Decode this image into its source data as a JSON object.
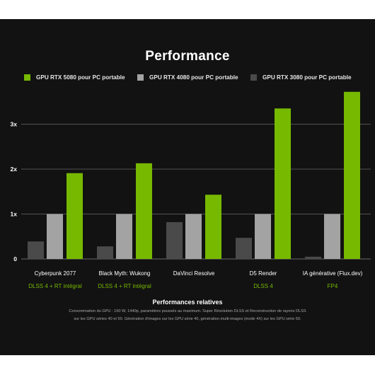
{
  "colors": {
    "background": "#121212",
    "rtx5080": "#76b900",
    "rtx4080": "#a3a3a3",
    "rtx3080": "#4a4a4a",
    "subtitle_green": "#76b900",
    "gridline": "#6a6a6a"
  },
  "chart_data": {
    "type": "bar",
    "title": "Performance",
    "xlabel": "Performances relatives",
    "ylabel": "",
    "ylim": [
      0,
      3.8
    ],
    "yticks": [
      {
        "value": 0,
        "label": "0"
      },
      {
        "value": 1,
        "label": "1x"
      },
      {
        "value": 2,
        "label": "2x"
      },
      {
        "value": 3,
        "label": "3x"
      }
    ],
    "legend_position": "top",
    "grid": true,
    "categories": [
      "Cyberpunk 2077",
      "Black Myth: Wukong",
      "DaVinci Resolve",
      "D5 Render",
      "IA générative (Flux.dev)"
    ],
    "category_subtitles": [
      "DLSS 4 + RT intégral",
      "DLSS 4 + RT intégral",
      "",
      "DLSS 4",
      "FP4"
    ],
    "series": [
      {
        "name": "GPU RTX 3080 pour PC portable",
        "values": [
          0.39,
          0.28,
          0.82,
          0.47,
          0.05
        ]
      },
      {
        "name": "GPU RTX 4080 pour PC portable",
        "values": [
          1.0,
          1.0,
          1.0,
          1.0,
          1.0
        ]
      },
      {
        "name": "GPU RTX 5080 pour PC portable",
        "values": [
          1.91,
          2.13,
          1.43,
          3.35,
          3.72
        ]
      }
    ],
    "notes": [
      "Consommation du GPU : 150 W, 1440p, paramètres poussés au maximum. Super Résolution DLSS et Reconstruction de rayons DLSS",
      "sur les GPU séries 40 et 50. Génération d'images sur les GPU série 40, génération multi-images (mode 4X) sur les GPU série 50."
    ]
  },
  "legend": [
    {
      "label": "GPU RTX 5080 pour PC portable",
      "color": "#76b900"
    },
    {
      "label": "GPU RTX 4080 pour PC portable",
      "color": "#a3a3a3"
    },
    {
      "label": "GPU RTX 3080 pour PC portable",
      "color": "#4a4a4a"
    }
  ]
}
